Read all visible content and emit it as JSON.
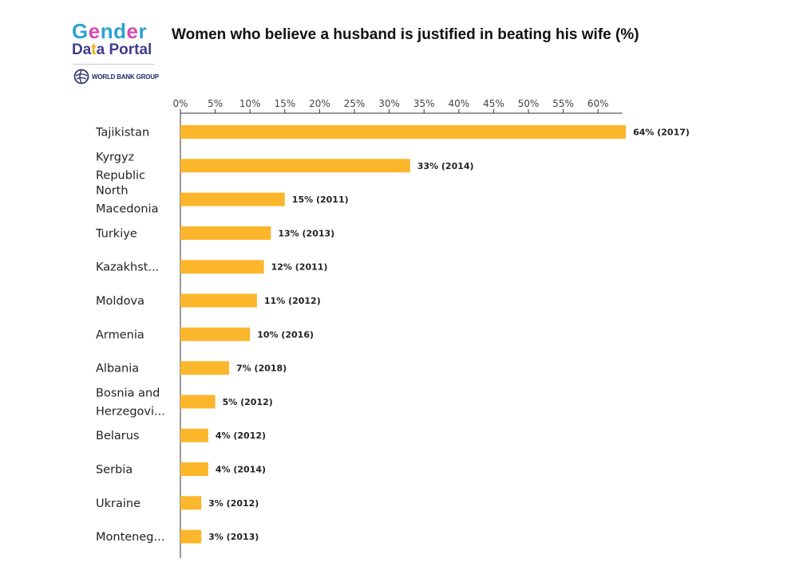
{
  "logo": {
    "line1_pre": "G",
    "line1_accent": "e",
    "line1_post": "nd",
    "line1_accent2": "e",
    "line1_end": "r",
    "line2_pre": "Da",
    "line2_accent": "t",
    "line2_post": "a Portal",
    "org": "WORLD BANK GROUP"
  },
  "chart_data": {
    "type": "bar",
    "orientation": "horizontal",
    "title": "Women who believe a husband is justified in beating his wife (%)",
    "xlim": [
      0,
      63.5
    ],
    "x_ticks": [
      "0%",
      "5%",
      "10%",
      "15%",
      "20%",
      "25%",
      "30%",
      "35%",
      "40%",
      "45%",
      "50%",
      "55%",
      "60%"
    ],
    "x_axis_position": "top",
    "grid": false,
    "bar_color": "#FBB62B",
    "categories": [
      [
        "Tajikistan"
      ],
      [
        "Kyrgyz",
        "Republic"
      ],
      [
        "North",
        "Macedonia"
      ],
      [
        "Turkiye"
      ],
      [
        "Kazakhst..."
      ],
      [
        "Moldova"
      ],
      [
        "Armenia"
      ],
      [
        "Albania"
      ],
      [
        "Bosnia and",
        "Herzegovi..."
      ],
      [
        "Belarus"
      ],
      [
        "Serbia"
      ],
      [
        "Ukraine"
      ],
      [
        "Monteneg..."
      ]
    ],
    "values": [
      64,
      33,
      15,
      13,
      12,
      11,
      10,
      7,
      5,
      4,
      4,
      3,
      3
    ],
    "data_labels": [
      "64% (2017)",
      "33% (2014)",
      "15% (2011)",
      "13% (2013)",
      "12% (2011)",
      "11% (2012)",
      "10% (2016)",
      "7% (2018)",
      "5% (2012)",
      "4% (2012)",
      "4% (2014)",
      "3% (2012)",
      "3% (2013)"
    ]
  }
}
